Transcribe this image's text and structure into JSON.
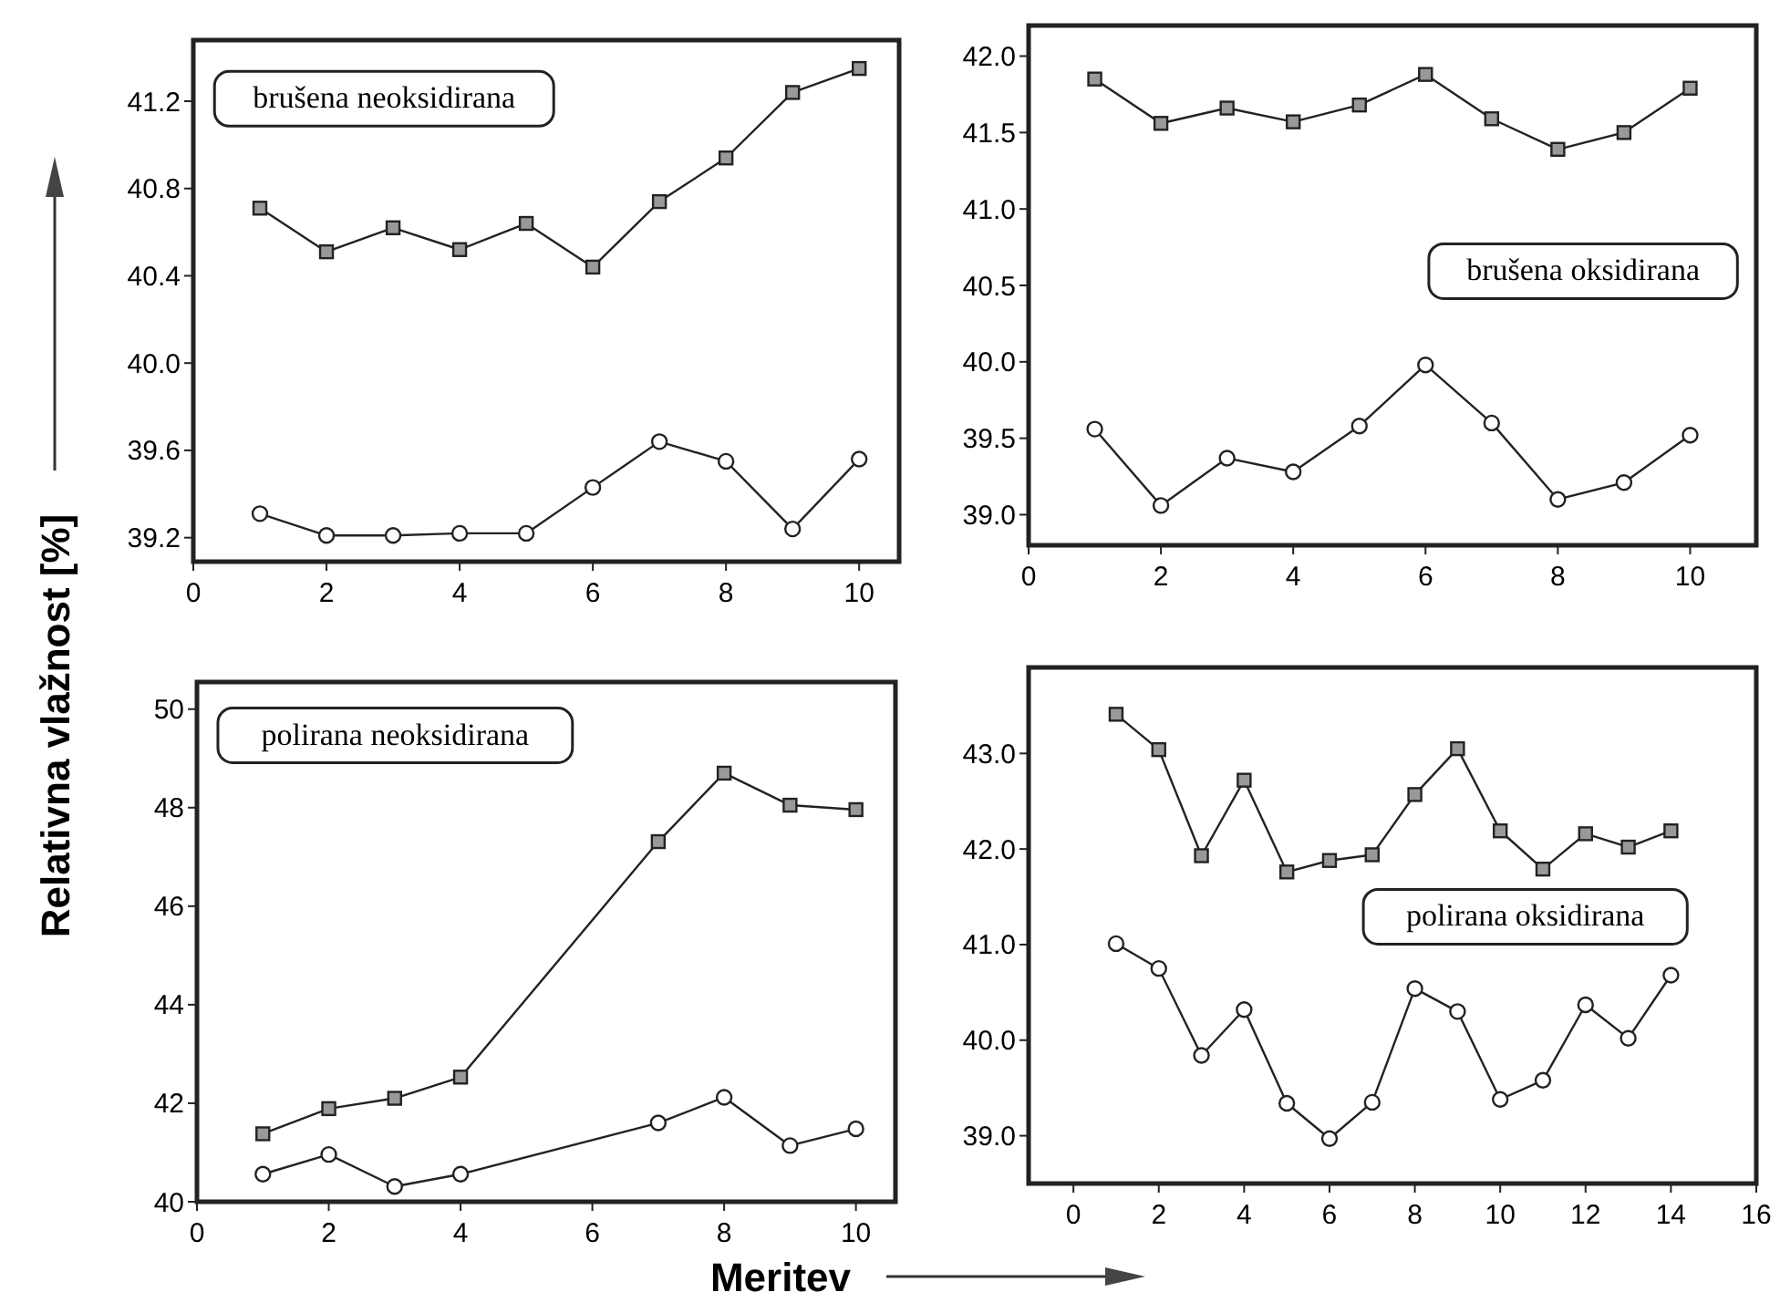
{
  "chart_data": [
    {
      "type": "line",
      "title": "brušena neoksidirana",
      "ylabel": "Relativna vlažnost [%]",
      "xlim": [
        0,
        10.6
      ],
      "xticks": [
        0,
        2,
        4,
        6,
        8,
        10
      ],
      "ylim": [
        39.09,
        41.48
      ],
      "yticks": [
        39.2,
        39.6,
        {
          "value": 40,
          "label": "40.0"
        },
        40.4,
        40.8,
        41.2
      ],
      "grid": false,
      "series": [
        {
          "color": "#222222",
          "marker": "square",
          "x": [
            1,
            2,
            3,
            4,
            5,
            6,
            7,
            8,
            9,
            10
          ],
          "values": [
            40.71,
            40.51,
            40.62,
            40.52,
            40.64,
            40.44,
            40.74,
            40.94,
            41.24,
            41.35
          ]
        },
        {
          "color": "#222222",
          "marker": "circle",
          "x": [
            1,
            2,
            3,
            4,
            5,
            6,
            7,
            8,
            9,
            10
          ],
          "values": [
            39.31,
            39.21,
            39.21,
            39.22,
            39.22,
            39.43,
            39.64,
            39.55,
            39.24,
            39.56
          ]
        }
      ]
    },
    {
      "type": "line",
      "title": "brušena oksidirana",
      "xlim": [
        0,
        11
      ],
      "xticks": [
        0,
        2,
        4,
        6,
        8,
        10
      ],
      "ylim": [
        38.8,
        42.2
      ],
      "yticks": [
        {
          "value": 39,
          "label": "39.0"
        },
        39.5,
        {
          "value": 40,
          "label": "40.0"
        },
        40.5,
        {
          "value": 41,
          "label": "41.0"
        },
        41.5,
        {
          "value": 42,
          "label": "42.0"
        }
      ],
      "grid": false,
      "series": [
        {
          "color": "#222222",
          "marker": "square",
          "x": [
            1,
            2,
            3,
            4,
            5,
            6,
            7,
            8,
            9,
            10
          ],
          "values": [
            41.85,
            41.56,
            41.66,
            41.57,
            41.68,
            41.88,
            41.59,
            41.39,
            41.5,
            41.79
          ]
        },
        {
          "color": "#222222",
          "marker": "circle",
          "x": [
            1,
            2,
            3,
            4,
            5,
            6,
            7,
            8,
            9,
            10
          ],
          "values": [
            39.56,
            39.06,
            39.37,
            39.28,
            39.58,
            39.98,
            39.6,
            39.1,
            39.21,
            39.52
          ]
        }
      ]
    },
    {
      "type": "line",
      "title": "polirana neoksidirana",
      "xlim": [
        0,
        10.6
      ],
      "xticks": [
        0,
        2,
        4,
        6,
        8,
        10
      ],
      "ylim": [
        40,
        50.55
      ],
      "yticks": [
        40,
        42,
        44,
        46,
        48,
        50
      ],
      "grid": false,
      "series": [
        {
          "color": "#222222",
          "marker": "square",
          "x": [
            1,
            2,
            3,
            4,
            7,
            8,
            9,
            10
          ],
          "values": [
            41.38,
            41.89,
            42.1,
            42.53,
            47.31,
            48.7,
            48.05,
            47.96
          ]
        },
        {
          "color": "#222222",
          "marker": "circle",
          "x": [
            1,
            2,
            3,
            4,
            7,
            8,
            9,
            10
          ],
          "values": [
            40.56,
            40.96,
            40.31,
            40.56,
            41.6,
            42.12,
            41.14,
            41.48
          ]
        }
      ]
    },
    {
      "type": "line",
      "title": "polirana oksidirana",
      "xlabel": "Meritev",
      "xlim": [
        -1.05,
        16
      ],
      "xticks": [
        0,
        2,
        4,
        6,
        8,
        10,
        12,
        14,
        16
      ],
      "ylim": [
        38.5,
        43.9
      ],
      "yticks": [
        {
          "value": 39,
          "label": "39.0"
        },
        {
          "value": 40,
          "label": "40.0"
        },
        {
          "value": 41,
          "label": "41.0"
        },
        {
          "value": 42,
          "label": "42.0"
        },
        {
          "value": 43,
          "label": "43.0"
        }
      ],
      "grid": false,
      "series": [
        {
          "color": "#222222",
          "marker": "square",
          "x": [
            1,
            2,
            3,
            4,
            5,
            6,
            7,
            8,
            9,
            10,
            11,
            12,
            13,
            14
          ],
          "values": [
            43.41,
            43.04,
            41.93,
            42.72,
            41.76,
            41.88,
            41.94,
            42.57,
            43.05,
            42.19,
            41.79,
            42.16,
            42.02,
            42.19
          ]
        },
        {
          "color": "#222222",
          "marker": "circle",
          "x": [
            1,
            2,
            3,
            4,
            5,
            6,
            7,
            8,
            9,
            10,
            11,
            12,
            13,
            14
          ],
          "values": [
            41.01,
            40.75,
            39.84,
            40.32,
            39.34,
            38.97,
            39.35,
            40.54,
            40.3,
            39.38,
            39.58,
            40.37,
            40.02,
            40.68
          ]
        }
      ]
    }
  ]
}
